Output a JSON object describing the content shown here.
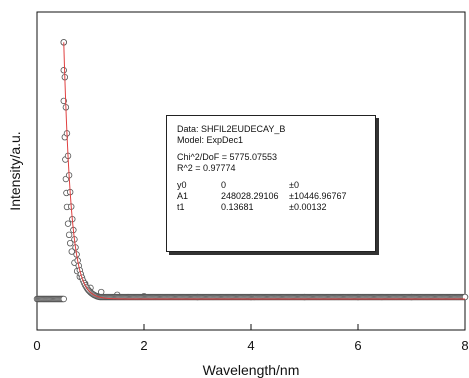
{
  "chart_data": {
    "type": "scatter",
    "title": "",
    "xlabel": "Wavelength/nm",
    "ylabel": "Intensity/a.u.",
    "xlim": [
      0,
      8
    ],
    "ylim": [
      0,
      1
    ],
    "x_ticks": [
      "0",
      "2",
      "4",
      "6",
      "8"
    ],
    "y_ticks": [],
    "baseline_x_range": [
      0,
      0.5
    ],
    "series": [
      {
        "style": "open-circle markers",
        "points": [
          [
            0.5,
            0.92
          ],
          [
            0.5,
            0.82
          ],
          [
            0.5,
            0.71
          ],
          [
            0.52,
            0.58
          ],
          [
            0.53,
            0.5
          ],
          [
            0.54,
            0.43
          ],
          [
            0.55,
            0.38
          ],
          [
            0.56,
            0.33
          ],
          [
            0.58,
            0.27
          ],
          [
            0.6,
            0.23
          ],
          [
            0.62,
            0.2
          ],
          [
            0.65,
            0.17
          ],
          [
            0.7,
            0.13
          ],
          [
            0.75,
            0.1
          ],
          [
            0.8,
            0.08
          ],
          [
            0.9,
            0.055
          ],
          [
            1.0,
            0.04
          ],
          [
            1.2,
            0.025
          ],
          [
            1.5,
            0.015
          ],
          [
            2.0,
            0.01
          ],
          [
            3.0,
            0.007
          ],
          [
            4.0,
            0.007
          ],
          [
            5.0,
            0.007
          ],
          [
            6.0,
            0.007
          ],
          [
            7.0,
            0.007
          ],
          [
            8.0,
            0.007
          ]
        ],
        "tail": {
          "x_start": 0.5,
          "x_end": 8,
          "y": 0.007
        }
      },
      {
        "style": "red fit line",
        "color": "#e04040",
        "model": "ExpDec1",
        "y0": 0,
        "A1": 248028.29106,
        "t1": 0.13681
      }
    ],
    "annotation": {
      "data_line": "Data: SHFIL2EUDECAY_B",
      "model_line": "Model: ExpDec1",
      "chi_line": "Chi^2/DoF     = 5775.07553",
      "r2_line": "R^2    =  0.97774",
      "params": [
        {
          "name": "y0",
          "value": "0",
          "error": "±0"
        },
        {
          "name": "A1",
          "value": "248028.29106",
          "error": "±10446.96767"
        },
        {
          "name": "t1",
          "value": "0.13681",
          "error": "±0.00132"
        }
      ]
    }
  }
}
